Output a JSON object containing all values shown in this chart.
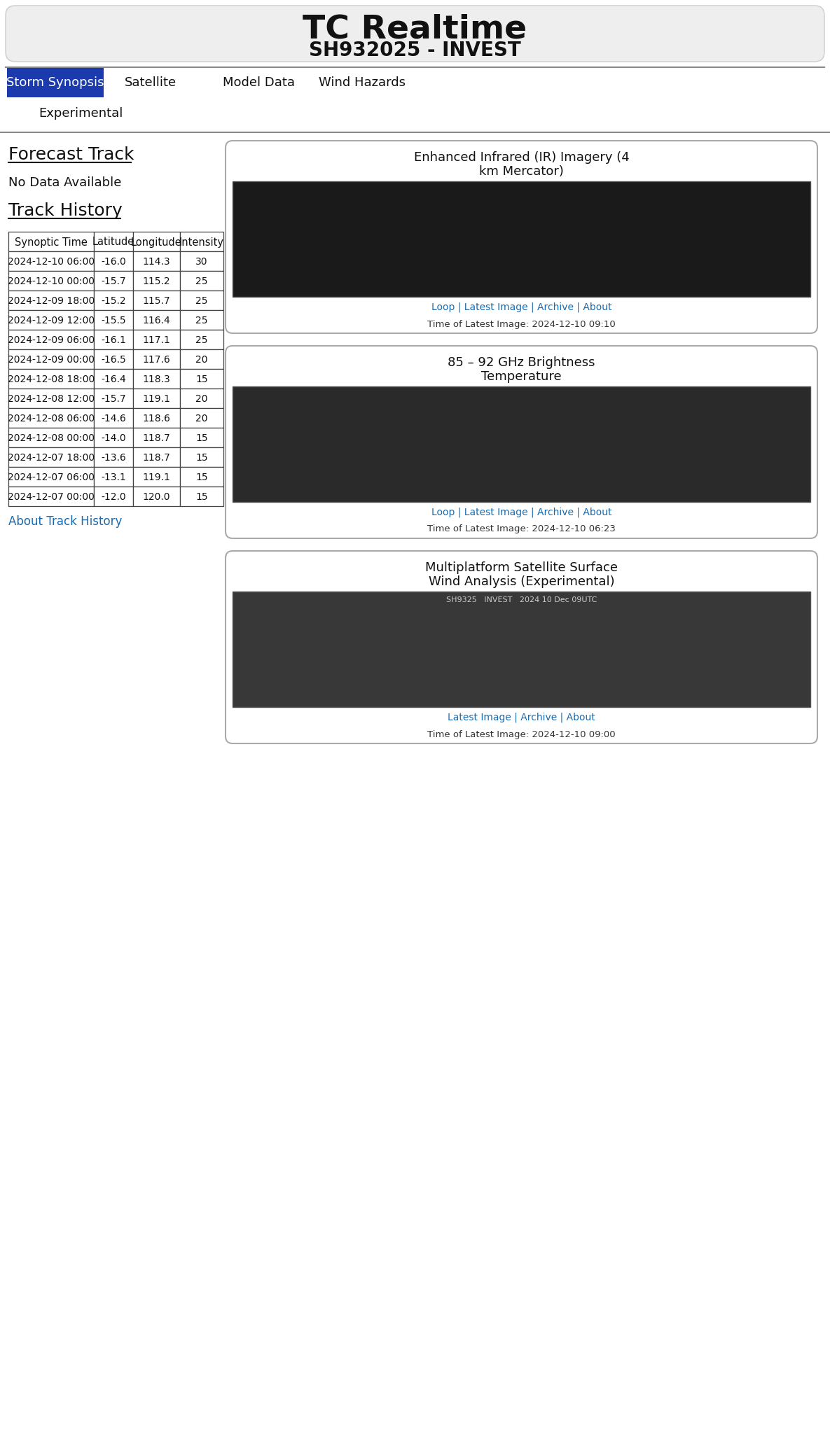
{
  "title": "TC Realtime",
  "subtitle": "SH932025 - INVEST",
  "nav_items": [
    "Storm Synopsis",
    "Satellite",
    "Model Data",
    "Wind Hazards"
  ],
  "nav_active_bg": "#1a3aad",
  "secondary_nav": [
    "Experimental"
  ],
  "forecast_track_label": "Forecast Track",
  "no_data_text": "No Data Available",
  "track_history_label": "Track History",
  "about_link": "About Track History",
  "table_headers": [
    "Synoptic Time",
    "Latitude",
    "Longitude",
    "Intensity"
  ],
  "table_data": [
    [
      "2024-12-10 06:00",
      "-16.0",
      "114.3",
      "30"
    ],
    [
      "2024-12-10 00:00",
      "-15.7",
      "115.2",
      "25"
    ],
    [
      "2024-12-09 18:00",
      "-15.2",
      "115.7",
      "25"
    ],
    [
      "2024-12-09 12:00",
      "-15.5",
      "116.4",
      "25"
    ],
    [
      "2024-12-09 06:00",
      "-16.1",
      "117.1",
      "25"
    ],
    [
      "2024-12-09 00:00",
      "-16.5",
      "117.6",
      "20"
    ],
    [
      "2024-12-08 18:00",
      "-16.4",
      "118.3",
      "15"
    ],
    [
      "2024-12-08 12:00",
      "-15.7",
      "119.1",
      "20"
    ],
    [
      "2024-12-08 06:00",
      "-14.6",
      "118.6",
      "20"
    ],
    [
      "2024-12-08 00:00",
      "-14.0",
      "118.7",
      "15"
    ],
    [
      "2024-12-07 18:00",
      "-13.6",
      "118.7",
      "15"
    ],
    [
      "2024-12-07 06:00",
      "-13.1",
      "119.1",
      "15"
    ],
    [
      "2024-12-07 00:00",
      "-12.0",
      "120.0",
      "15"
    ]
  ],
  "right_panels": [
    {
      "title": "Enhanced Infrared (IR) Imagery (4\nkm Mercator)",
      "links": "Loop | Latest Image | Archive | About",
      "time_label": "Time of Latest Image: 2024-12-10 09:10",
      "img_bg": "#1a1a1a"
    },
    {
      "title": "85 – 92 GHz Brightness\nTemperature",
      "links": "Loop | Latest Image | Archive | About",
      "time_label": "Time of Latest Image: 2024-12-10 06:23",
      "img_bg": "#2a2a2a"
    },
    {
      "title": "Multiplatform Satellite Surface\nWind Analysis (Experimental)",
      "links": "Latest Image | Archive | About",
      "time_label": "Time of Latest Image: 2024-12-10 09:00",
      "img_bg": "#383838",
      "img_subtitle": "SH9325   INVEST   2024 10 Dec 09UTC"
    }
  ],
  "bg_color": "#ffffff",
  "link_color": "#1a6aad",
  "header_bg": "#eeeeee"
}
